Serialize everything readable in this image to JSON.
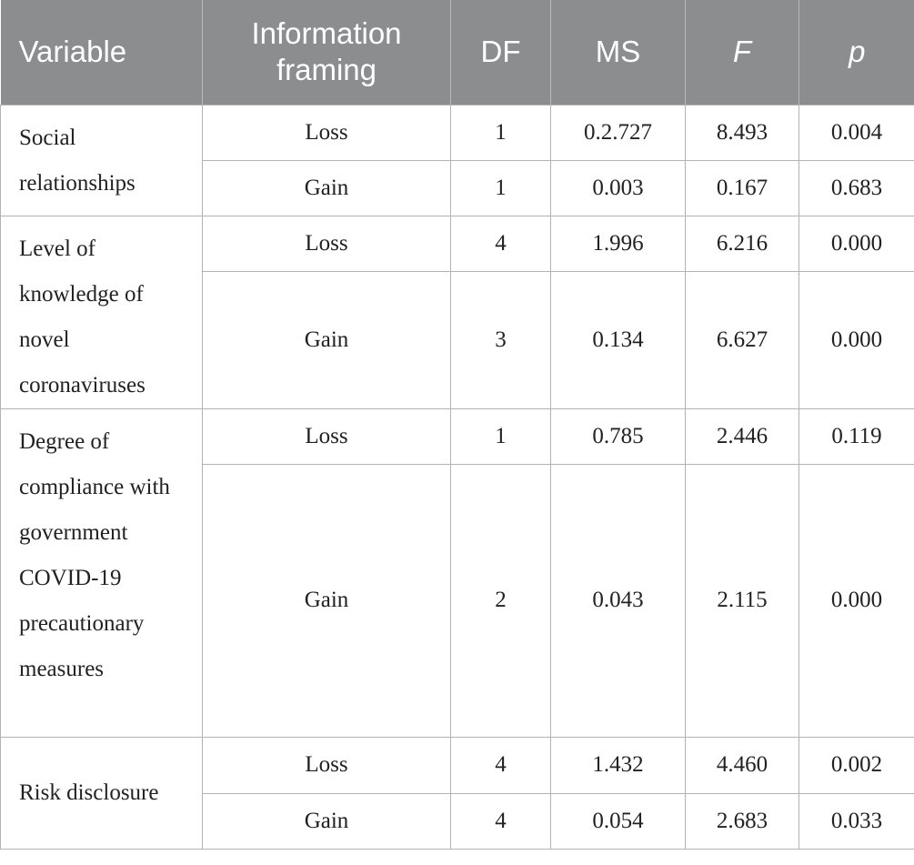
{
  "headers": [
    "Variable",
    "Information framing",
    "DF",
    "MS",
    "F",
    "p"
  ],
  "groups": [
    {
      "variable": "Social relationships",
      "rows": [
        {
          "framing": "Loss",
          "df": "1",
          "ms": "0.2.727",
          "f": "8.493",
          "p": "0.004"
        },
        {
          "framing": "Gain",
          "df": "1",
          "ms": "0.003",
          "f": "0.167",
          "p": "0.683"
        }
      ]
    },
    {
      "variable": "Level of knowledge of novel coronaviruses",
      "rows": [
        {
          "framing": "Loss",
          "df": "4",
          "ms": "1.996",
          "f": "6.216",
          "p": "0.000"
        },
        {
          "framing": "Gain",
          "df": "3",
          "ms": "0.134",
          "f": "6.627",
          "p": "0.000"
        }
      ]
    },
    {
      "variable": "Degree of compliance with government COVID-19 precautionary measures",
      "rows": [
        {
          "framing": "Loss",
          "df": "1",
          "ms": "0.785",
          "f": "2.446",
          "p": "0.119"
        },
        {
          "framing": "Gain",
          "df": "2",
          "ms": "0.043",
          "f": "2.115",
          "p": "0.000"
        }
      ]
    },
    {
      "variable": "Risk disclosure",
      "rows": [
        {
          "framing": "Loss",
          "df": "4",
          "ms": "1.432",
          "f": "4.460",
          "p": "0.002"
        },
        {
          "framing": "Gain",
          "df": "4",
          "ms": "0.054",
          "f": "2.683",
          "p": "0.033"
        }
      ]
    }
  ]
}
